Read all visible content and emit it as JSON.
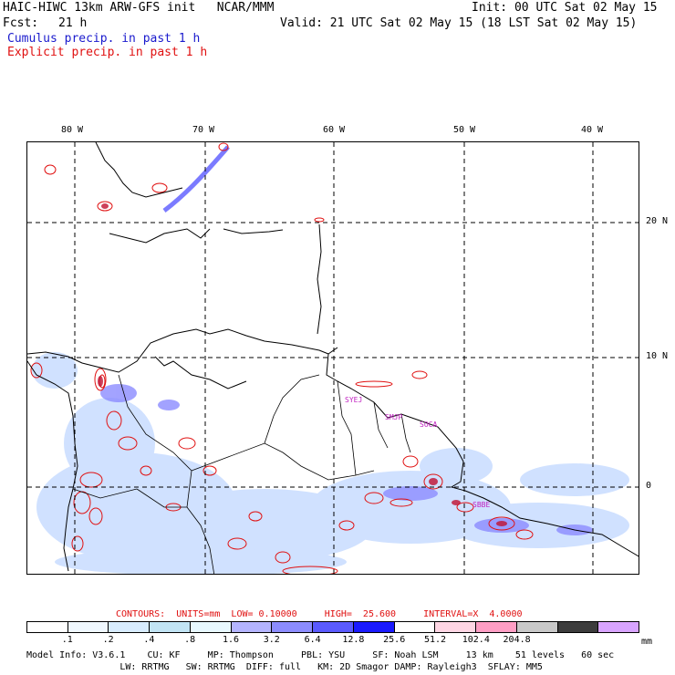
{
  "header": {
    "model_title": "HAIC-HIWC 13km ARW-GFS init   NCAR/MMM",
    "init": "Init: 00 UTC Sat 02 May 15",
    "fcst_label": "Fcst:",
    "fcst_value": "21 h",
    "valid": "Valid: 21 UTC Sat 02 May 15 (18 LST Sat 02 May 15)",
    "cumulus": "Cumulus precip. in past 1 h",
    "explicit": "Explicit precip. in past 1 h"
  },
  "map": {
    "lon_labels": [
      "80 W",
      "70 W",
      "60 W",
      "50 W",
      "40 W"
    ],
    "lat_labels": [
      "20 N",
      "10 N",
      "0"
    ],
    "stations": [
      "SYEJ",
      "SMJP",
      "SOCA",
      "SBBE"
    ]
  },
  "contours": {
    "label": "CONTOURS:  UNITS=mm  LOW= 0.10000     HIGH=  25.600     INTERVAL=X  4.0000"
  },
  "colorbar": {
    "unit": "mm",
    "colors": [
      "#ffffff",
      "#f0f8ff",
      "#d8ecff",
      "#c2e4f4",
      "#e8f8ff",
      "#b4b4ff",
      "#8c8cff",
      "#5a5aff",
      "#1a1aff",
      "#ffffff",
      "#ffd6e4",
      "#ff9ec4",
      "#c8c8c8",
      "#3c3c3c",
      "#d8a4ff"
    ],
    "labels": [
      ".1",
      ".2",
      ".4",
      ".8",
      "1.6",
      "3.2",
      "6.4",
      "12.8",
      "25.6",
      "51.2",
      "102.4",
      "204.8"
    ]
  },
  "footer": {
    "line1": "Model Info: V3.6.1    CU: KF     MP: Thompson     PBL: YSU     SF: Noah LSM     13 km    51 levels   60 sec",
    "line2": "                 LW: RRTMG   SW: RRTMG  DIFF: full   KM: 2D Smagor DAMP: Rayleigh3  SFLAY: MM5"
  }
}
